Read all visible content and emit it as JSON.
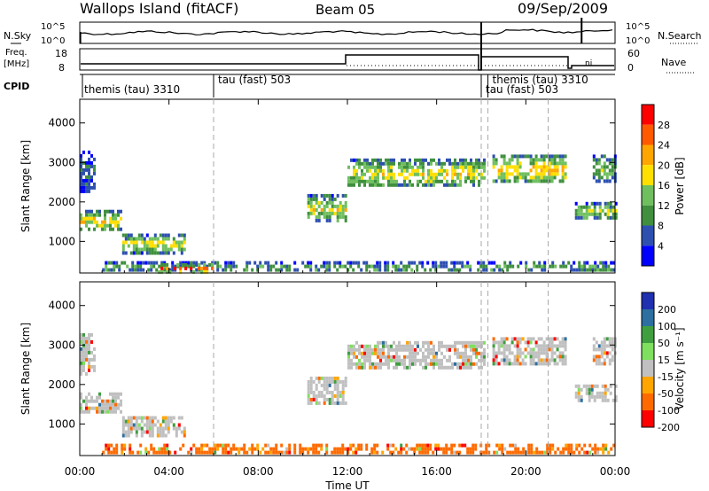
{
  "header": {
    "station": "Wallops Island (fitACF)",
    "beam": "Beam 05",
    "date": "09/Sep/2009"
  },
  "panels": {
    "nsky": {
      "label": "N.Sky",
      "ticks": [
        "10^5",
        "10^0"
      ],
      "right_label": "N.Search",
      "right_ticks": [
        "10^5",
        "10^0"
      ]
    },
    "freq": {
      "label_line1": "Freq.",
      "label_line2": "[MHz]",
      "ticks": [
        "18",
        "8"
      ],
      "right_label": "Nave",
      "right_ticks": [
        "60",
        "0"
      ],
      "inline_annotation": "ni"
    },
    "cpid": {
      "label": "CPID",
      "modes": [
        {
          "label": "themis (tau) 3310",
          "start": 0.0
        },
        {
          "label": "tau (fast) 503",
          "start": 6.0
        },
        {
          "label": "tau (fast) 503",
          "start": 18.0
        },
        {
          "label": "themis (tau) 3310",
          "start": 18.3
        }
      ]
    }
  },
  "x_axis": {
    "label": "Time UT",
    "ticks": [
      "00:00",
      "04:00",
      "08:00",
      "12:00",
      "16:00",
      "20:00",
      "00:00"
    ],
    "tick_hours": [
      0,
      4,
      8,
      12,
      16,
      20,
      24
    ]
  },
  "colors": {
    "power_scale": [
      "#0000ff",
      "#2d4fb0",
      "#3f8f3f",
      "#6fbf5f",
      "#ffdf00",
      "#ffa500",
      "#ff5a00",
      "#ff0000"
    ],
    "velocity_scale": [
      "#2030b0",
      "#2d6fa0",
      "#3f9f3f",
      "#7fdf5f",
      "#c0c0c0",
      "#ffa500",
      "#ff6a00",
      "#ff0000"
    ]
  },
  "chart_data": [
    {
      "type": "heatmap",
      "title": "Power",
      "ylabel": "Slant Range [km]",
      "yticks": [
        "1000",
        "2000",
        "3000",
        "4000"
      ],
      "ylim": [
        200,
        4600
      ],
      "xlim": [
        0,
        24
      ],
      "colorbar": {
        "label": "Power [dB]",
        "ticks": [
          "4",
          "8",
          "12",
          "16",
          "20",
          "24",
          "28"
        ],
        "range": [
          0,
          32
        ]
      },
      "echo_regions": [
        {
          "t0": 0.0,
          "t1": 0.6,
          "r0": 2300,
          "r1": 3300,
          "value": 8
        },
        {
          "t0": 0.0,
          "t1": 1.9,
          "r0": 1300,
          "r1": 1800,
          "value": 20
        },
        {
          "t0": 1.9,
          "t1": 4.7,
          "r0": 750,
          "r1": 1200,
          "value": 18
        },
        {
          "t0": 1.0,
          "t1": 24.0,
          "r0": 250,
          "r1": 500,
          "value": 12
        },
        {
          "t0": 3.5,
          "t1": 6.0,
          "r0": 250,
          "r1": 450,
          "value": 28
        },
        {
          "t0": 10.2,
          "t1": 11.9,
          "r0": 1500,
          "r1": 2200,
          "value": 18
        },
        {
          "t0": 12.0,
          "t1": 18.1,
          "r0": 2400,
          "r1": 3100,
          "value": 18
        },
        {
          "t0": 18.5,
          "t1": 21.8,
          "r0": 2500,
          "r1": 3200,
          "value": 20
        },
        {
          "t0": 22.2,
          "t1": 24.0,
          "r0": 1600,
          "r1": 2000,
          "value": 16
        },
        {
          "t0": 23.0,
          "t1": 24.0,
          "r0": 2500,
          "r1": 3200,
          "value": 14
        }
      ]
    },
    {
      "type": "heatmap",
      "title": "Velocity",
      "ylabel": "Slant Range [km]",
      "yticks": [
        "1000",
        "2000",
        "3000",
        "4000"
      ],
      "ylim": [
        200,
        4600
      ],
      "xlim": [
        0,
        24
      ],
      "colorbar": {
        "label": "Velocity [m s⁻¹]",
        "ticks": [
          "200",
          "100",
          "50",
          "15",
          "-15",
          "-50",
          "-100",
          "-200"
        ],
        "range": [
          -250,
          250
        ]
      },
      "echo_regions": [
        {
          "t0": 0.0,
          "t1": 0.6,
          "r0": 2300,
          "r1": 3300,
          "value": 0
        },
        {
          "t0": 0.0,
          "t1": 1.9,
          "r0": 1300,
          "r1": 1800,
          "value": 0
        },
        {
          "t0": 1.9,
          "t1": 4.7,
          "r0": 750,
          "r1": 1200,
          "value": 0
        },
        {
          "t0": 1.0,
          "t1": 24.0,
          "r0": 250,
          "r1": 500,
          "value": -60
        },
        {
          "t0": 10.2,
          "t1": 11.9,
          "r0": 1500,
          "r1": 2200,
          "value": 0
        },
        {
          "t0": 12.0,
          "t1": 18.1,
          "r0": 2400,
          "r1": 3100,
          "value": 0
        },
        {
          "t0": 18.5,
          "t1": 21.8,
          "r0": 2500,
          "r1": 3200,
          "value": 0
        },
        {
          "t0": 22.2,
          "t1": 24.0,
          "r0": 1600,
          "r1": 2000,
          "value": 0
        },
        {
          "t0": 23.0,
          "t1": 24.0,
          "r0": 2500,
          "r1": 3200,
          "value": 0
        }
      ]
    }
  ]
}
